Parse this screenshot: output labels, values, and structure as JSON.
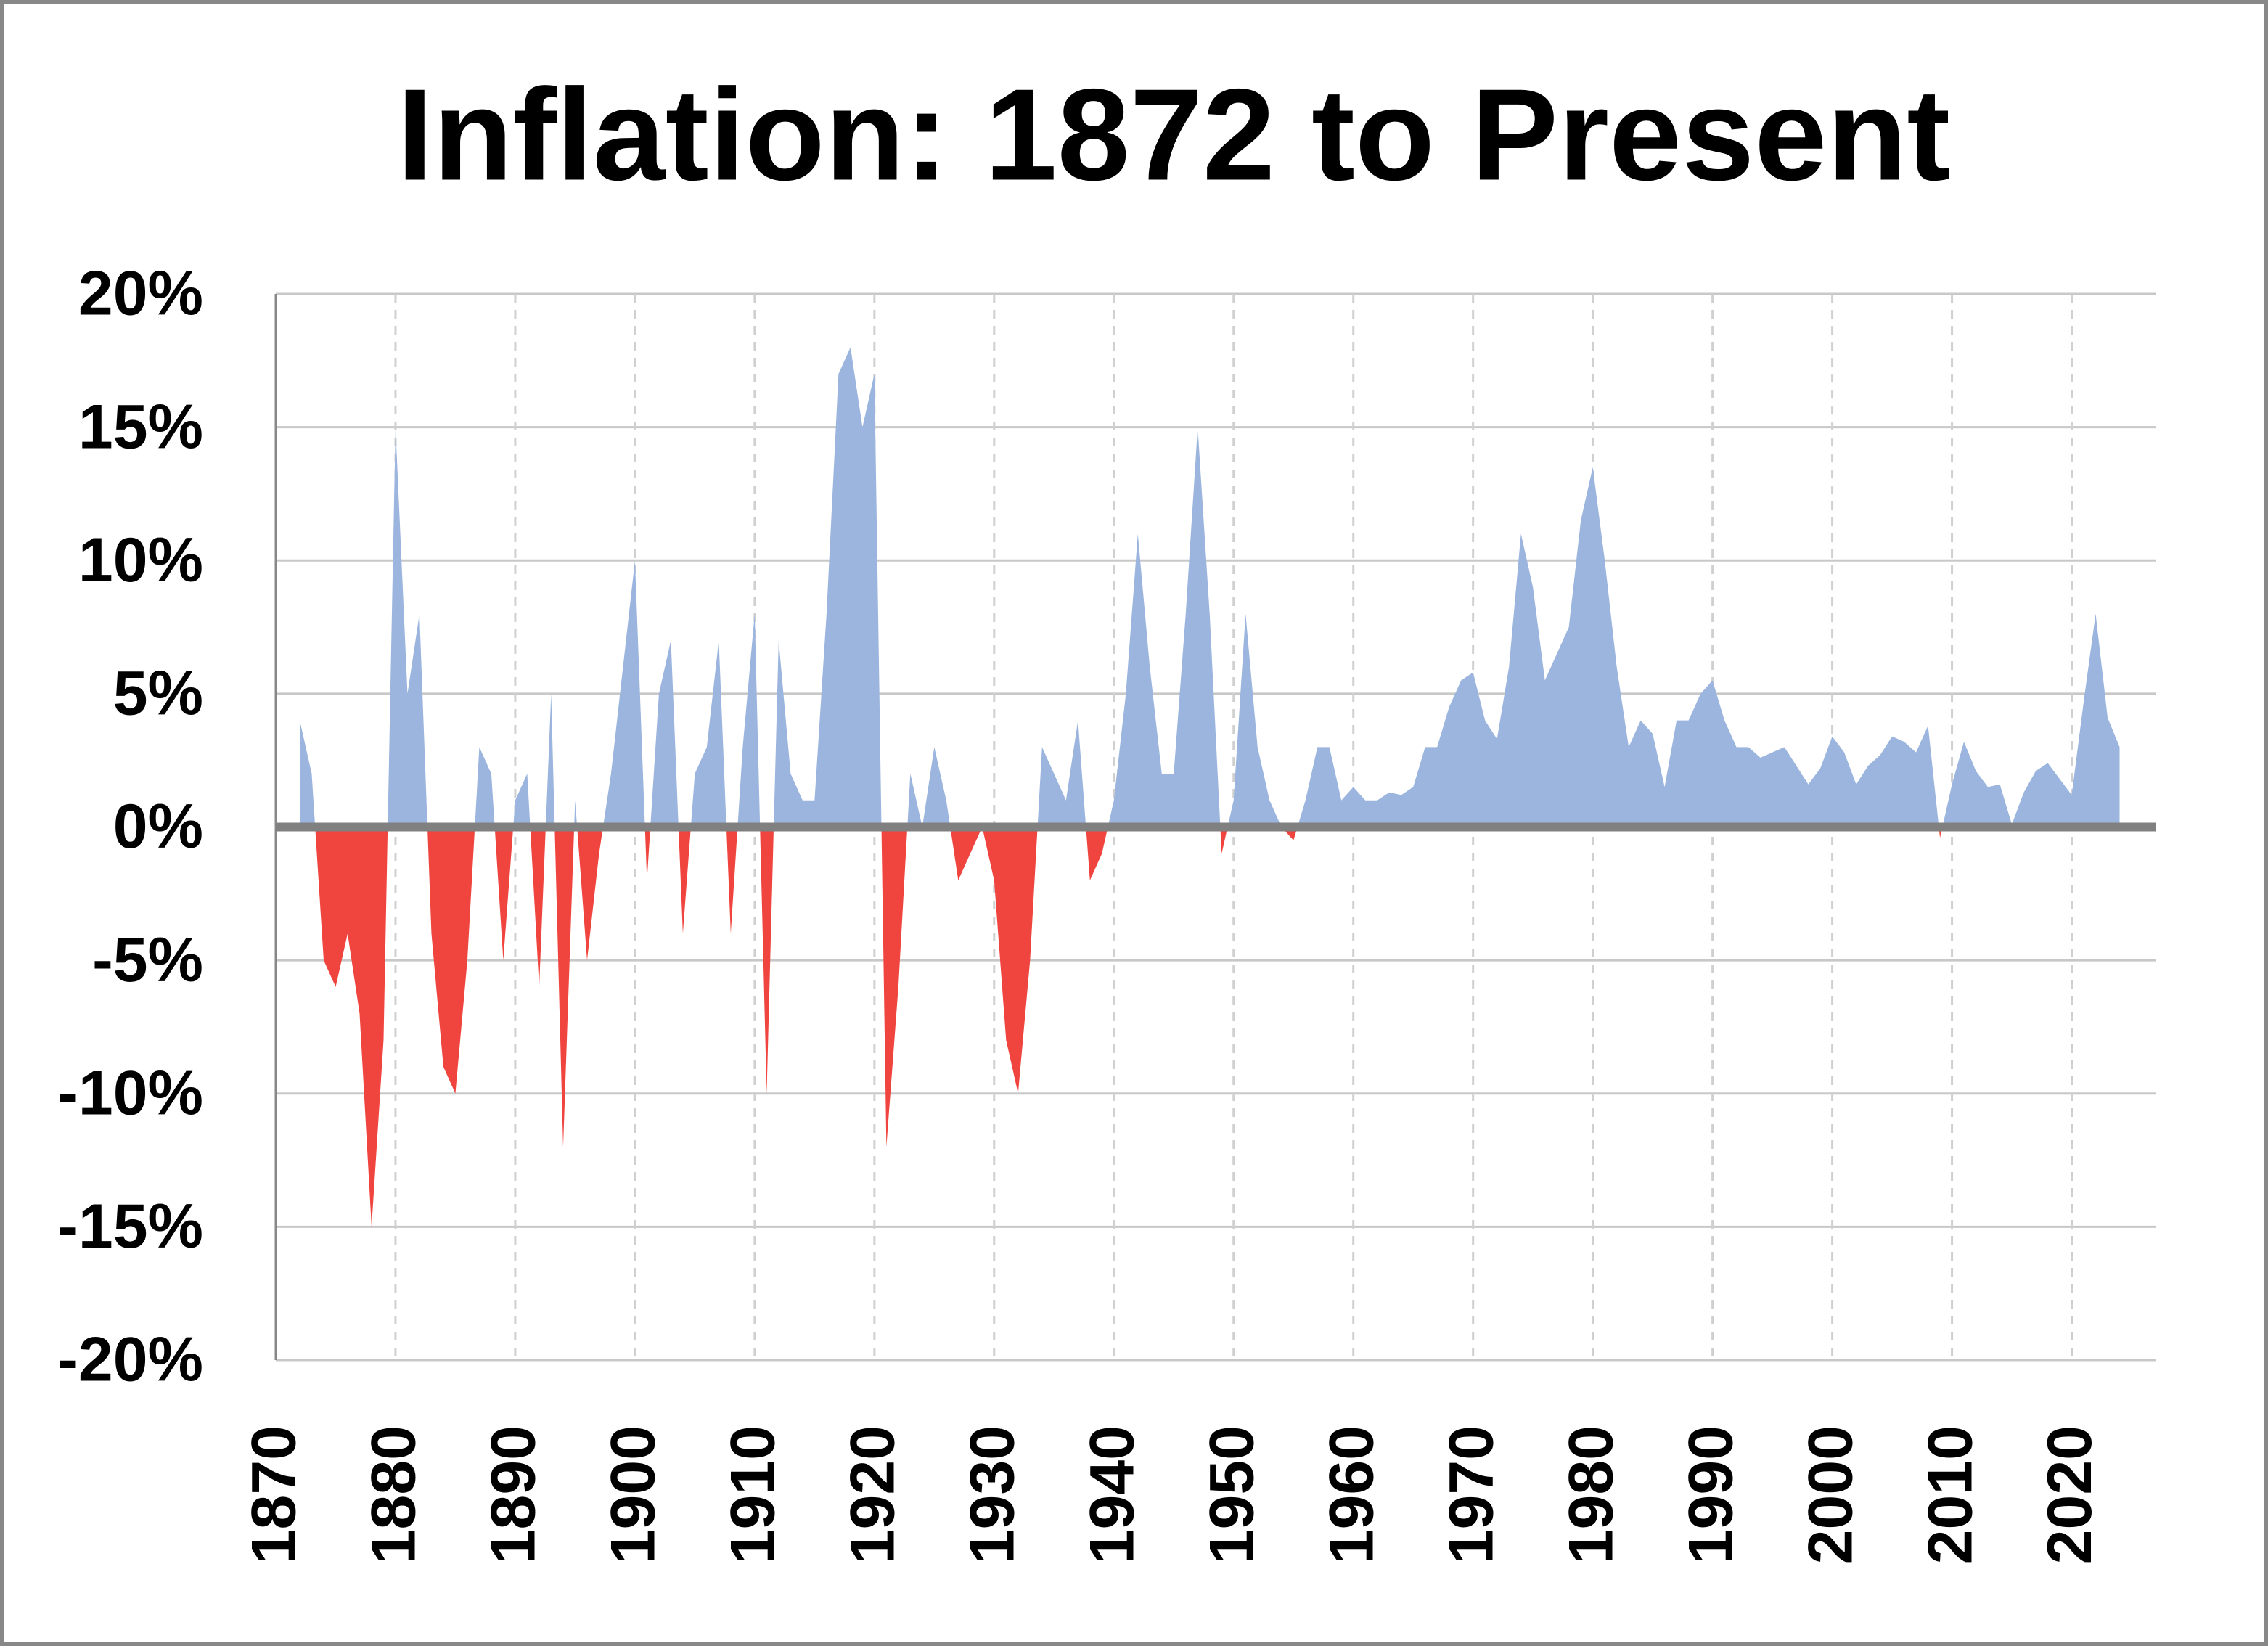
{
  "chart_data": {
    "type": "area",
    "title": "Inflation: 1872 to Present",
    "x": [
      1872,
      1873,
      1874,
      1875,
      1876,
      1877,
      1878,
      1879,
      1880,
      1881,
      1882,
      1883,
      1884,
      1885,
      1886,
      1887,
      1888,
      1889,
      1890,
      1891,
      1892,
      1893,
      1894,
      1895,
      1896,
      1897,
      1898,
      1899,
      1900,
      1901,
      1902,
      1903,
      1904,
      1905,
      1906,
      1907,
      1908,
      1909,
      1910,
      1911,
      1912,
      1913,
      1914,
      1915,
      1916,
      1917,
      1918,
      1919,
      1920,
      1921,
      1922,
      1923,
      1924,
      1925,
      1926,
      1927,
      1928,
      1929,
      1930,
      1931,
      1932,
      1933,
      1934,
      1935,
      1936,
      1937,
      1938,
      1939,
      1940,
      1941,
      1942,
      1943,
      1944,
      1945,
      1946,
      1947,
      1948,
      1949,
      1950,
      1951,
      1952,
      1953,
      1954,
      1955,
      1956,
      1957,
      1958,
      1959,
      1960,
      1961,
      1962,
      1963,
      1964,
      1965,
      1966,
      1967,
      1968,
      1969,
      1970,
      1971,
      1972,
      1973,
      1974,
      1975,
      1976,
      1977,
      1978,
      1979,
      1980,
      1981,
      1982,
      1983,
      1984,
      1985,
      1986,
      1987,
      1988,
      1989,
      1990,
      1991,
      1992,
      1993,
      1994,
      1995,
      1996,
      1997,
      1998,
      1999,
      2000,
      2001,
      2002,
      2003,
      2004,
      2005,
      2006,
      2007,
      2008,
      2009,
      2010,
      2011,
      2012,
      2013,
      2014,
      2015,
      2016,
      2017,
      2018,
      2019,
      2020,
      2021,
      2022,
      2023,
      2024
    ],
    "values": [
      4,
      2,
      -5,
      -6,
      -4,
      -7,
      -15,
      -8,
      15,
      5,
      8,
      -4,
      -9,
      -10,
      -5,
      3,
      2,
      -5,
      1,
      2,
      -6,
      5,
      -12,
      1,
      -5,
      -1,
      2,
      6,
      10,
      -2,
      5,
      7,
      -4,
      2,
      3,
      7,
      -4,
      3,
      8,
      -10,
      7,
      2,
      1,
      1,
      8,
      17,
      18,
      15,
      17,
      -12,
      -6,
      2,
      0,
      3,
      1,
      -2,
      -1,
      0,
      -2,
      -8,
      -10,
      -5,
      3,
      2,
      1,
      4,
      -2,
      -1,
      1,
      5,
      11,
      6,
      2,
      2,
      8,
      15,
      8,
      -1,
      1,
      8,
      3,
      1,
      0,
      -0.5,
      1,
      3,
      3,
      1,
      1.5,
      1,
      1,
      1.3,
      1.2,
      1.5,
      3,
      3,
      4.5,
      5.5,
      5.8,
      4,
      3.3,
      6,
      11,
      9,
      5.5,
      6.5,
      7.5,
      11.5,
      13.5,
      10,
      6,
      3,
      4,
      3.5,
      1.5,
      4,
      4,
      5,
      5.5,
      4,
      3,
      3,
      2.6,
      2.8,
      3,
      2.3,
      1.6,
      2.2,
      3.4,
      2.8,
      1.6,
      2.3,
      2.7,
      3.4,
      3.2,
      2.8,
      3.8,
      -0.4,
      1.6,
      3.2,
      2.1,
      1.5,
      1.6,
      0.1,
      1.3,
      2.1,
      2.4,
      1.8,
      1.2,
      4.7,
      8,
      4.1,
      3
    ],
    "positive_color": "#9bb5de",
    "negative_color": "#f0443f",
    "xlim": [
      1870,
      2027
    ],
    "xticks": [
      1870,
      1880,
      1890,
      1900,
      1910,
      1920,
      1930,
      1940,
      1950,
      1960,
      1970,
      1980,
      1990,
      2000,
      2010,
      2020
    ],
    "ylim": [
      -20,
      20
    ],
    "yticks": [
      {
        "value": -20,
        "label": "-20%"
      },
      {
        "value": -15,
        "label": "-15%"
      },
      {
        "value": -10,
        "label": "-10%"
      },
      {
        "value": -5,
        "label": "-5%"
      },
      {
        "value": 0,
        "label": "0%"
      },
      {
        "value": 5,
        "label": "5%"
      },
      {
        "value": 10,
        "label": "10%"
      },
      {
        "value": 15,
        "label": "15%"
      },
      {
        "value": 20,
        "label": "20%"
      }
    ],
    "grid": true
  }
}
